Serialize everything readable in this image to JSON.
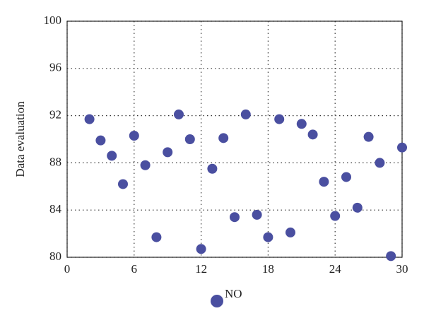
{
  "chart_data": {
    "type": "scatter",
    "ylabel": "Data evaluation",
    "xlim": [
      0,
      30
    ],
    "xticks": [
      0,
      6,
      12,
      18,
      24,
      30
    ],
    "ylim": [
      80,
      100
    ],
    "yticks": [
      80,
      84,
      88,
      92,
      96,
      100
    ],
    "grid": true,
    "series": [
      {
        "name": "NO",
        "color": "#4a4fa0",
        "x": [
          2,
          3,
          4,
          5,
          6,
          7,
          8,
          9,
          10,
          11,
          12,
          13,
          14,
          15,
          16,
          17,
          18,
          19,
          20,
          21,
          22,
          23,
          24,
          25,
          26,
          27,
          28,
          29,
          30
        ],
        "values": [
          91.7,
          89.9,
          88.6,
          86.2,
          90.3,
          87.8,
          81.7,
          88.9,
          92.1,
          90.0,
          80.7,
          87.5,
          90.1,
          83.4,
          92.1,
          83.6,
          81.7,
          91.7,
          82.1,
          91.3,
          90.4,
          86.4,
          83.5,
          86.8,
          84.2,
          90.2,
          88.0,
          80.1,
          89.3
        ]
      }
    ]
  }
}
